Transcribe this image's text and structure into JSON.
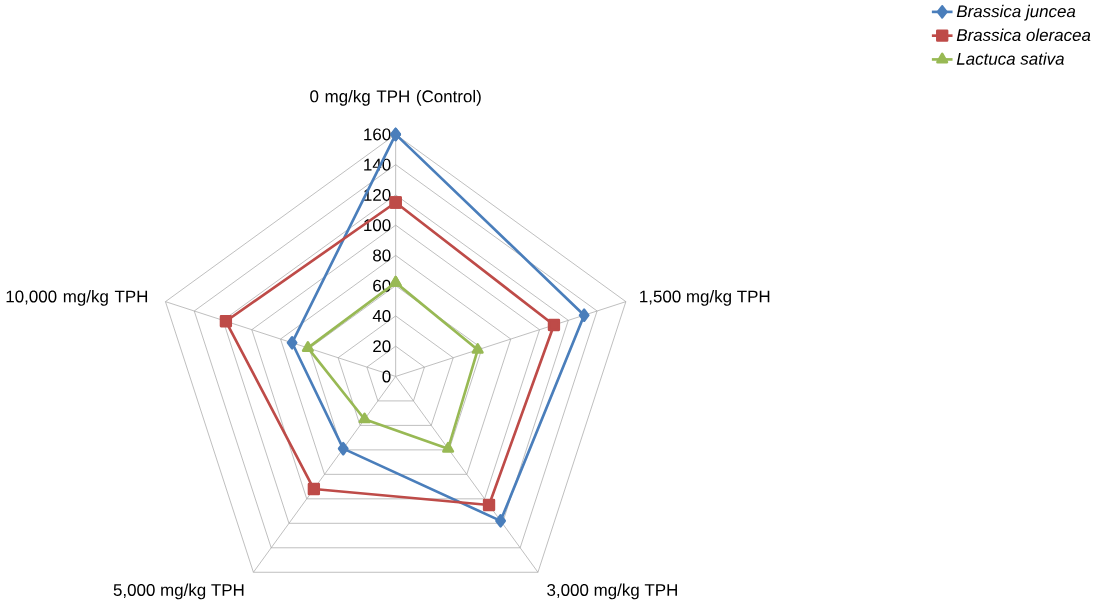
{
  "chart_data": {
    "type": "radar",
    "categories": [
      "0 mg/kg TPH (Control)",
      "1,500 mg/kg TPH",
      "3,000 mg/kg TPH",
      "5,000 mg/kg TPH",
      "10,000 mg/kg TPH"
    ],
    "series": [
      {
        "name": "Brassica juncea",
        "color": "#4a7ebb",
        "marker": "diamond",
        "values": [
          160,
          131,
          118,
          59,
          72
        ]
      },
      {
        "name": "Brassica oleracea",
        "color": "#be4b48",
        "marker": "square",
        "values": [
          115,
          110,
          105,
          92,
          118
        ]
      },
      {
        "name": "Lactuca sativa",
        "color": "#98b954",
        "marker": "triangle",
        "values": [
          62,
          57,
          59,
          35,
          61
        ]
      }
    ],
    "ylim": [
      0,
      160
    ],
    "yticks": [
      0,
      20,
      40,
      60,
      80,
      100,
      120,
      140,
      160
    ],
    "grid": true,
    "legend": "top right"
  }
}
